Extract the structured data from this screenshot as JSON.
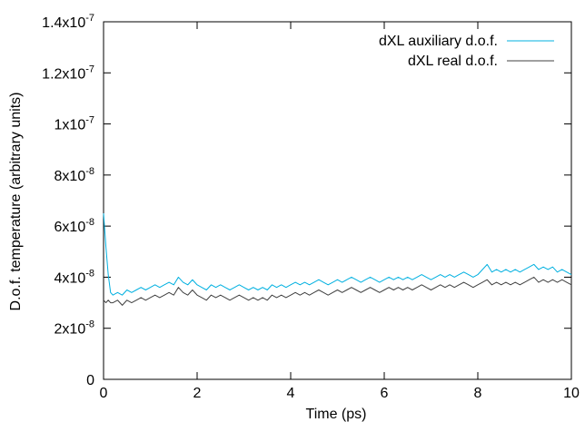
{
  "chart_data": {
    "type": "line",
    "title": "",
    "xlabel": "Time (ps)",
    "ylabel": "D.o.f. temperature (arbitrary units)",
    "xlim": [
      0,
      10
    ],
    "ylim": [
      0,
      1.4e-07
    ],
    "x_ticks": [
      {
        "value": 0,
        "label": "0"
      },
      {
        "value": 2,
        "label": "2"
      },
      {
        "value": 4,
        "label": "4"
      },
      {
        "value": 6,
        "label": "6"
      },
      {
        "value": 8,
        "label": "8"
      },
      {
        "value": 10,
        "label": "10"
      }
    ],
    "y_ticks": [
      {
        "value": 0,
        "mantissa": "0",
        "exponent": ""
      },
      {
        "value": 2e-08,
        "mantissa": "2x10",
        "exponent": "-8"
      },
      {
        "value": 4e-08,
        "mantissa": "4x10",
        "exponent": "-8"
      },
      {
        "value": 6e-08,
        "mantissa": "6x10",
        "exponent": "-8"
      },
      {
        "value": 8e-08,
        "mantissa": "8x10",
        "exponent": "-8"
      },
      {
        "value": 1e-07,
        "mantissa": "1x10",
        "exponent": "-7"
      },
      {
        "value": 1.2e-07,
        "mantissa": "1.2x10",
        "exponent": "-7"
      },
      {
        "value": 1.4e-07,
        "mantissa": "1.4x10",
        "exponent": "-7"
      }
    ],
    "grid": false,
    "legend_position": "top-right",
    "series": [
      {
        "name": "dXL auxiliary d.o.f.",
        "color": "#00b0e0",
        "x": [
          0,
          0.05,
          0.1,
          0.15,
          0.2,
          0.3,
          0.4,
          0.5,
          0.6,
          0.7,
          0.8,
          0.9,
          1.0,
          1.1,
          1.2,
          1.3,
          1.4,
          1.5,
          1.6,
          1.7,
          1.8,
          1.9,
          2.0,
          2.1,
          2.2,
          2.3,
          2.4,
          2.5,
          2.6,
          2.7,
          2.8,
          2.9,
          3.0,
          3.1,
          3.2,
          3.3,
          3.4,
          3.5,
          3.6,
          3.7,
          3.8,
          3.9,
          4.0,
          4.1,
          4.2,
          4.3,
          4.4,
          4.5,
          4.6,
          4.7,
          4.8,
          4.9,
          5.0,
          5.1,
          5.2,
          5.3,
          5.4,
          5.5,
          5.6,
          5.7,
          5.8,
          5.9,
          6.0,
          6.1,
          6.2,
          6.3,
          6.4,
          6.5,
          6.6,
          6.7,
          6.8,
          6.9,
          7.0,
          7.1,
          7.2,
          7.3,
          7.4,
          7.5,
          7.6,
          7.7,
          7.8,
          7.9,
          8.0,
          8.1,
          8.2,
          8.3,
          8.4,
          8.5,
          8.6,
          8.7,
          8.8,
          8.9,
          9.0,
          9.1,
          9.2,
          9.3,
          9.4,
          9.5,
          9.6,
          9.7,
          9.8,
          9.9,
          10.0
        ],
        "y": [
          6.5e-08,
          5.2e-08,
          4.1e-08,
          3.4e-08,
          3.3e-08,
          3.4e-08,
          3.3e-08,
          3.5e-08,
          3.4e-08,
          3.5e-08,
          3.6e-08,
          3.5e-08,
          3.6e-08,
          3.7e-08,
          3.6e-08,
          3.7e-08,
          3.8e-08,
          3.7e-08,
          4e-08,
          3.8e-08,
          3.7e-08,
          3.9e-08,
          3.7e-08,
          3.6e-08,
          3.5e-08,
          3.7e-08,
          3.6e-08,
          3.7e-08,
          3.6e-08,
          3.5e-08,
          3.6e-08,
          3.7e-08,
          3.6e-08,
          3.5e-08,
          3.6e-08,
          3.5e-08,
          3.6e-08,
          3.5e-08,
          3.7e-08,
          3.6e-08,
          3.7e-08,
          3.6e-08,
          3.7e-08,
          3.8e-08,
          3.7e-08,
          3.8e-08,
          3.7e-08,
          3.8e-08,
          3.9e-08,
          3.8e-08,
          3.7e-08,
          3.8e-08,
          3.9e-08,
          3.8e-08,
          3.9e-08,
          4e-08,
          3.9e-08,
          3.8e-08,
          3.9e-08,
          4e-08,
          3.9e-08,
          3.8e-08,
          3.9e-08,
          4e-08,
          3.9e-08,
          4e-08,
          3.9e-08,
          4e-08,
          3.9e-08,
          4e-08,
          4.1e-08,
          4e-08,
          3.9e-08,
          4e-08,
          4.1e-08,
          4e-08,
          4.1e-08,
          4e-08,
          4.1e-08,
          4.2e-08,
          4.1e-08,
          4e-08,
          4.1e-08,
          4.3e-08,
          4.5e-08,
          4.2e-08,
          4.3e-08,
          4.2e-08,
          4.3e-08,
          4.2e-08,
          4.3e-08,
          4.2e-08,
          4.3e-08,
          4.4e-08,
          4.5e-08,
          4.3e-08,
          4.4e-08,
          4.3e-08,
          4.4e-08,
          4.2e-08,
          4.3e-08,
          4.2e-08,
          4.1e-08
        ]
      },
      {
        "name": "dXL real d.o.f.",
        "color": "#404040",
        "x": [
          0,
          0.05,
          0.1,
          0.15,
          0.2,
          0.3,
          0.4,
          0.5,
          0.6,
          0.7,
          0.8,
          0.9,
          1.0,
          1.1,
          1.2,
          1.3,
          1.4,
          1.5,
          1.6,
          1.7,
          1.8,
          1.9,
          2.0,
          2.1,
          2.2,
          2.3,
          2.4,
          2.5,
          2.6,
          2.7,
          2.8,
          2.9,
          3.0,
          3.1,
          3.2,
          3.3,
          3.4,
          3.5,
          3.6,
          3.7,
          3.8,
          3.9,
          4.0,
          4.1,
          4.2,
          4.3,
          4.4,
          4.5,
          4.6,
          4.7,
          4.8,
          4.9,
          5.0,
          5.1,
          5.2,
          5.3,
          5.4,
          5.5,
          5.6,
          5.7,
          5.8,
          5.9,
          6.0,
          6.1,
          6.2,
          6.3,
          6.4,
          6.5,
          6.6,
          6.7,
          6.8,
          6.9,
          7.0,
          7.1,
          7.2,
          7.3,
          7.4,
          7.5,
          7.6,
          7.7,
          7.8,
          7.9,
          8.0,
          8.1,
          8.2,
          8.3,
          8.4,
          8.5,
          8.6,
          8.7,
          8.8,
          8.9,
          9.0,
          9.1,
          9.2,
          9.3,
          9.4,
          9.5,
          9.6,
          9.7,
          9.8,
          9.9,
          10.0
        ],
        "y": [
          3.1e-08,
          3e-08,
          3.1e-08,
          3e-08,
          3e-08,
          3.1e-08,
          2.9e-08,
          3.1e-08,
          3e-08,
          3.1e-08,
          3.2e-08,
          3.1e-08,
          3.2e-08,
          3.3e-08,
          3.2e-08,
          3.3e-08,
          3.4e-08,
          3.3e-08,
          3.6e-08,
          3.4e-08,
          3.3e-08,
          3.5e-08,
          3.3e-08,
          3.2e-08,
          3.1e-08,
          3.3e-08,
          3.2e-08,
          3.3e-08,
          3.2e-08,
          3.1e-08,
          3.2e-08,
          3.3e-08,
          3.2e-08,
          3.1e-08,
          3.2e-08,
          3.1e-08,
          3.2e-08,
          3.1e-08,
          3.3e-08,
          3.2e-08,
          3.3e-08,
          3.2e-08,
          3.3e-08,
          3.4e-08,
          3.3e-08,
          3.4e-08,
          3.3e-08,
          3.4e-08,
          3.5e-08,
          3.4e-08,
          3.3e-08,
          3.4e-08,
          3.5e-08,
          3.4e-08,
          3.5e-08,
          3.6e-08,
          3.5e-08,
          3.4e-08,
          3.5e-08,
          3.6e-08,
          3.5e-08,
          3.4e-08,
          3.5e-08,
          3.6e-08,
          3.5e-08,
          3.6e-08,
          3.5e-08,
          3.6e-08,
          3.5e-08,
          3.6e-08,
          3.7e-08,
          3.6e-08,
          3.5e-08,
          3.6e-08,
          3.7e-08,
          3.6e-08,
          3.7e-08,
          3.6e-08,
          3.7e-08,
          3.8e-08,
          3.7e-08,
          3.6e-08,
          3.7e-08,
          3.8e-08,
          3.9e-08,
          3.7e-08,
          3.8e-08,
          3.7e-08,
          3.8e-08,
          3.7e-08,
          3.8e-08,
          3.7e-08,
          3.8e-08,
          3.9e-08,
          4e-08,
          3.8e-08,
          3.9e-08,
          3.8e-08,
          3.9e-08,
          3.8e-08,
          3.9e-08,
          3.8e-08,
          3.7e-08
        ]
      }
    ]
  }
}
